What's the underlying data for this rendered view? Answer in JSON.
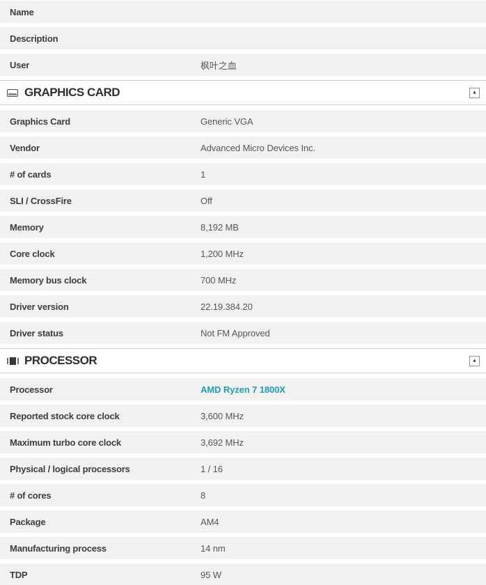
{
  "colors": {
    "row_background": "#f1f1f1",
    "label_text": "#3d3d3d",
    "value_text": "#565656",
    "link_accent": "#1f9db2",
    "border": "#cfcfcf"
  },
  "sections": [
    {
      "id": "system-info-partial",
      "rows": [
        {
          "label": "Name",
          "value": ""
        },
        {
          "label": "Description",
          "value": ""
        },
        {
          "label": "User",
          "value": "枫叶之血"
        }
      ]
    },
    {
      "id": "graphics-card",
      "header": {
        "title": "GRAPHICS CARD",
        "icon": "monitor-icon",
        "collapse_icon": "▲"
      },
      "rows": [
        {
          "label": "Graphics Card",
          "value": "Generic VGA"
        },
        {
          "label": "Vendor",
          "value": "Advanced Micro Devices Inc."
        },
        {
          "label": "# of cards",
          "value": "1"
        },
        {
          "label": "SLI / CrossFire",
          "value": "Off"
        },
        {
          "label": "Memory",
          "value": "8,192 MB"
        },
        {
          "label": "Core clock",
          "value": "1,200 MHz"
        },
        {
          "label": "Memory bus clock",
          "value": "700 MHz"
        },
        {
          "label": "Driver version",
          "value": "22.19.384.20"
        },
        {
          "label": "Driver status",
          "value": "Not FM Approved"
        }
      ]
    },
    {
      "id": "processor",
      "header": {
        "title": "PROCESSOR",
        "icon": "cpu-icon",
        "collapse_icon": "▲"
      },
      "rows": [
        {
          "label": "Processor",
          "value": "AMD Ryzen 7 1800X",
          "link": true
        },
        {
          "label": "Reported stock core clock",
          "value": "3,600 MHz"
        },
        {
          "label": "Maximum turbo core clock",
          "value": "3,692 MHz"
        },
        {
          "label": "Physical / logical processors",
          "value": "1 / 16"
        },
        {
          "label": "# of cores",
          "value": "8"
        },
        {
          "label": "Package",
          "value": "AM4"
        },
        {
          "label": "Manufacturing process",
          "value": "14 nm"
        },
        {
          "label": "TDP",
          "value": "95 W"
        }
      ]
    }
  ]
}
